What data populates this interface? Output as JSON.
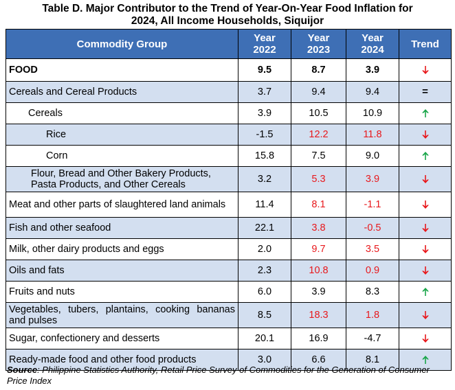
{
  "title_line1": "Table D. Major Contributor to the Trend of Year-On-Year Food Inflation for",
  "title_line2": "2024, All Income Households, Siquijor",
  "headers": {
    "commodity": "Commodity Group",
    "y2022_a": "Year",
    "y2022_b": "2022",
    "y2023_a": "Year",
    "y2023_b": "2023",
    "y2024_a": "Year",
    "y2024_b": "2024",
    "trend": "Trend"
  },
  "rows": [
    {
      "label": "FOOD",
      "v2022": "9.5",
      "v2023": "8.7",
      "v2024": "3.9",
      "trend": "down"
    },
    {
      "label": "Cereals and Cereal Products",
      "v2022": "3.7",
      "v2023": "9.4",
      "v2024": "9.4",
      "trend": "equal",
      "trend_text": "="
    },
    {
      "label": "Cereals",
      "v2022": "3.9",
      "v2023": "10.5",
      "v2024": "10.9",
      "trend": "up"
    },
    {
      "label": "Rice",
      "v2022": "-1.5",
      "v2023": "12.2",
      "v2024": "11.8",
      "trend": "down"
    },
    {
      "label": "Corn",
      "v2022": "15.8",
      "v2023": "7.5",
      "v2024": "9.0",
      "trend": "up"
    },
    {
      "label": "Flour, Bread and Other Bakery Products, Pasta Products, and Other Cereals",
      "v2022": "3.2",
      "v2023": "5.3",
      "v2024": "3.9",
      "trend": "down"
    },
    {
      "label": "Meat and other parts of slaughtered land animals",
      "v2022": "11.4",
      "v2023": "8.1",
      "v2024": "-1.1",
      "trend": "down"
    },
    {
      "label": "Fish and other seafood",
      "v2022": "22.1",
      "v2023": "3.8",
      "v2024": "-0.5",
      "trend": "down"
    },
    {
      "label": "Milk, other dairy products and eggs",
      "v2022": "2.0",
      "v2023": "9.7",
      "v2024": "3.5",
      "trend": "down"
    },
    {
      "label": "Oils and fats",
      "v2022": "2.3",
      "v2023": "10.8",
      "v2024": "0.9",
      "trend": "down"
    },
    {
      "label": "Fruits and nuts",
      "v2022": "6.0",
      "v2023": "3.9",
      "v2024": "8.3",
      "trend": "up"
    },
    {
      "label": "Vegetables, tubers, plantains, cooking bananas and pulses",
      "v2022": "8.5",
      "v2023": "18.3",
      "v2024": "1.8",
      "trend": "down"
    },
    {
      "label": "Sugar, confectionery and desserts",
      "v2022": "20.1",
      "v2023": "16.9",
      "v2024": "-4.7",
      "trend": "down"
    },
    {
      "label": "Ready-made food and other food products",
      "v2022": "3.0",
      "v2023": "6.6",
      "v2024": "8.1",
      "trend": "up"
    }
  ],
  "source_label": "Source",
  "source_text": ": Philippine Statistics Authority, Retail Price Survey of Commodities for the Generation of Consumer Price Index",
  "colors": {
    "header_bg": "#3e6fb5",
    "shade": "#d3dff0",
    "red": "#e8181c",
    "green": "#1aa64a"
  }
}
